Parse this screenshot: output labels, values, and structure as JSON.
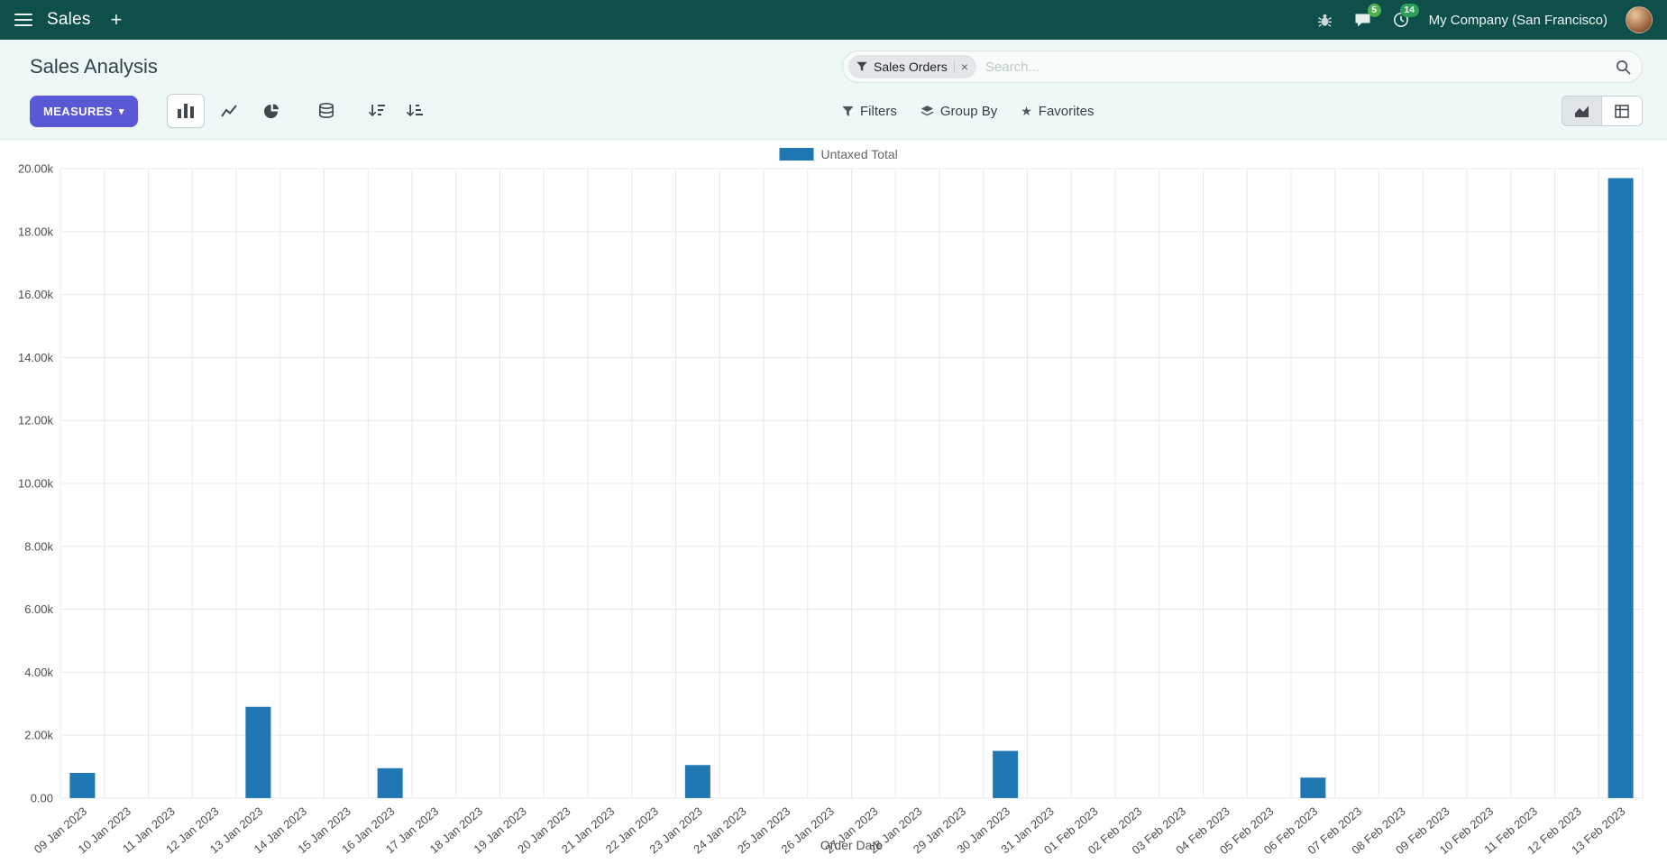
{
  "icons": {
    "plus": "+",
    "caret_down": "▾",
    "star": "★",
    "close": "×"
  },
  "topbar": {
    "app_name": "Sales",
    "company_name": "My Company (San Francisco)",
    "message_count": "5",
    "activity_count": "14"
  },
  "control_panel": {
    "title": "Sales Analysis",
    "measures_button": "MEASURES",
    "search": {
      "facet": "Sales Orders",
      "placeholder": "Search..."
    },
    "filter_buttons": {
      "filters": "Filters",
      "group_by": "Group By",
      "favorites": "Favorites"
    }
  },
  "chart_data": {
    "type": "bar",
    "title": "",
    "xlabel": "Order Date",
    "ylabel": "",
    "ylim": [
      0,
      20000
    ],
    "grid": true,
    "legend_position": "top",
    "yticks": [
      0,
      2000,
      4000,
      6000,
      8000,
      10000,
      12000,
      14000,
      16000,
      18000,
      20000
    ],
    "ytick_labels": [
      "0.00",
      "2.00k",
      "4.00k",
      "6.00k",
      "8.00k",
      "10.00k",
      "12.00k",
      "14.00k",
      "16.00k",
      "18.00k",
      "20.00k"
    ],
    "categories": [
      "09 Jan 2023",
      "10 Jan 2023",
      "11 Jan 2023",
      "12 Jan 2023",
      "13 Jan 2023",
      "14 Jan 2023",
      "15 Jan 2023",
      "16 Jan 2023",
      "17 Jan 2023",
      "18 Jan 2023",
      "19 Jan 2023",
      "20 Jan 2023",
      "21 Jan 2023",
      "22 Jan 2023",
      "23 Jan 2023",
      "24 Jan 2023",
      "25 Jan 2023",
      "26 Jan 2023",
      "27 Jan 2023",
      "28 Jan 2023",
      "29 Jan 2023",
      "30 Jan 2023",
      "31 Jan 2023",
      "01 Feb 2023",
      "02 Feb 2023",
      "03 Feb 2023",
      "04 Feb 2023",
      "05 Feb 2023",
      "06 Feb 2023",
      "07 Feb 2023",
      "08 Feb 2023",
      "09 Feb 2023",
      "10 Feb 2023",
      "11 Feb 2023",
      "12 Feb 2023",
      "13 Feb 2023"
    ],
    "series": [
      {
        "name": "Untaxed Total",
        "color": "#1f77b4",
        "values": [
          800,
          0,
          0,
          0,
          2900,
          0,
          0,
          950,
          0,
          0,
          0,
          0,
          0,
          0,
          1050,
          0,
          0,
          0,
          0,
          0,
          0,
          1500,
          0,
          0,
          0,
          0,
          0,
          0,
          650,
          0,
          0,
          0,
          0,
          0,
          0,
          19700
        ]
      }
    ]
  },
  "colors": {
    "topbar_bg": "#0e4f4a",
    "panel_bg": "#eef8f6",
    "primary_button": "#5a58d5",
    "bar": "#1f77b4",
    "badge_message": "#4caf50",
    "badge_activity": "#2e9e5b"
  }
}
